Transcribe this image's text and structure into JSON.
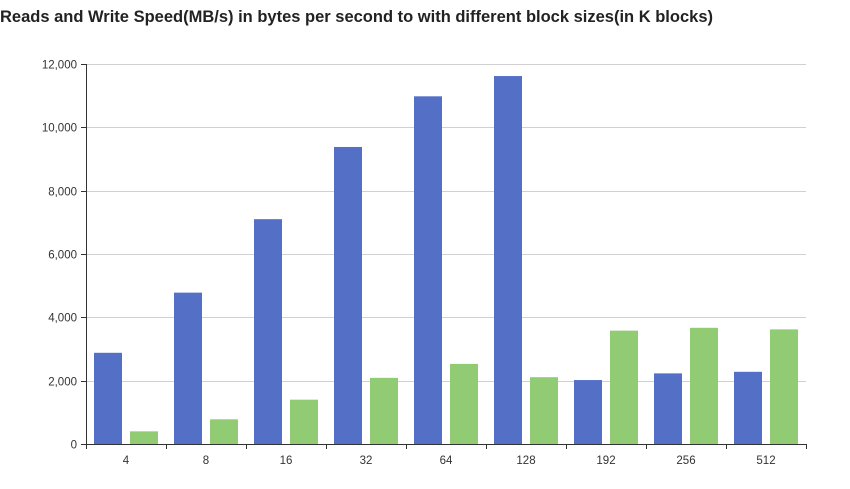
{
  "colors": {
    "reads": "#5470c6",
    "writes": "#91cc75",
    "grid": "#d0d0d0",
    "axis": "#333333"
  },
  "chart_data": {
    "type": "bar",
    "title": "Reads and Write Speed(MB/s) in bytes per second to with different block sizes(in K blocks)",
    "categories": [
      "4",
      "8",
      "16",
      "32",
      "64",
      "128",
      "192",
      "256",
      "512"
    ],
    "series": [
      {
        "values": [
          2880,
          4780,
          7100,
          9380,
          10980,
          11620,
          2020,
          2230,
          2280
        ]
      },
      {
        "values": [
          400,
          780,
          1400,
          2090,
          2530,
          2110,
          3580,
          3670,
          3620
        ]
      }
    ],
    "ylim": [
      0,
      12000
    ],
    "yticks": [
      0,
      2000,
      4000,
      6000,
      8000,
      10000,
      12000
    ],
    "ytick_labels": [
      "0",
      "2,000",
      "4,000",
      "6,000",
      "8,000",
      "10,000",
      "12,000"
    ],
    "grid": true,
    "legend": "none"
  }
}
